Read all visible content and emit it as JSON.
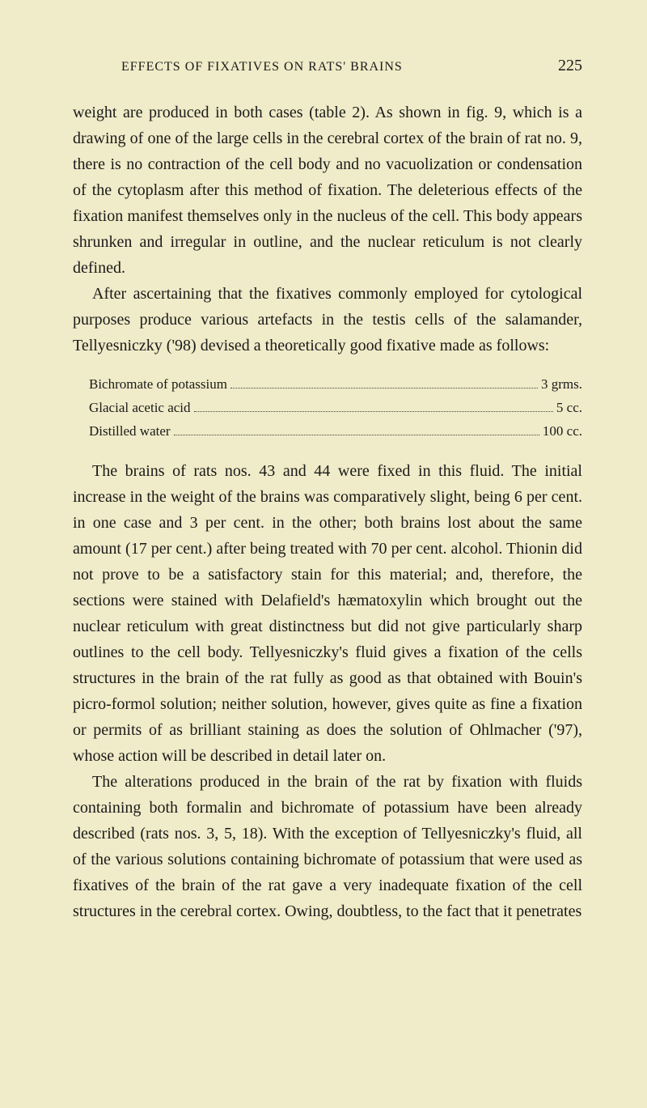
{
  "header": {
    "title": "EFFECTS OF FIXATIVES ON RATS' BRAINS",
    "pageNumber": "225"
  },
  "paragraphs": {
    "p1": "weight are produced in both cases (table 2). As shown in fig. 9, which is a drawing of one of the large cells in the cerebral cortex of the brain of rat no. 9, there is no contraction of the cell body and no vacuolization or condensation of the cytoplasm after this method of fixation. The deleterious effects of the fixation manifest themselves only in the nucleus of the cell. This body appears shrunken and irregular in outline, and the nuclear reticulum is not clearly defined.",
    "p2": "After ascertaining that the fixatives commonly employed for cytological purposes produce various artefacts in the testis cells of the salamander, Tellyesniczky ('98) devised a theoretically good fixative made as follows:",
    "p3": "The brains of rats nos. 43 and 44 were fixed in this fluid. The initial increase in the weight of the brains was comparatively slight, being 6 per cent. in one case and 3 per cent. in the other; both brains lost about the same amount (17 per cent.) after being treated with 70 per cent. alcohol. Thionin did not prove to be a satisfactory stain for this material; and, therefore, the sections were stained with Delafield's hæmatoxylin which brought out the nuclear reticulum with great distinctness but did not give particularly sharp outlines to the cell body. Tellyesniczky's fluid gives a fixation of the cells structures in the brain of the rat fully as good as that obtained with Bouin's picro-formol solution; neither solution, however, gives quite as fine a fixation or permits of as brilliant staining as does the solution of Ohlmacher ('97), whose action will be described in detail later on.",
    "p4": "The alterations produced in the brain of the rat by fixation with fluids containing both formalin and bichromate of potassium have been already described (rats nos. 3, 5, 18). With the exception of Tellyesniczky's fluid, all of the various solutions containing bichromate of potassium that were used as fixatives of the brain of the rat gave a very inadequate fixation of the cell structures in the cerebral cortex. Owing, doubtless, to the fact that it penetrates"
  },
  "recipe": {
    "items": [
      {
        "label": "Bichromate of potassium",
        "value": "3 grms."
      },
      {
        "label": "Glacial acetic acid",
        "value": "5 cc."
      },
      {
        "label": "Distilled water",
        "value": "100 cc."
      }
    ]
  },
  "colors": {
    "background": "#f0ebc8",
    "text": "#1a1a1a"
  }
}
